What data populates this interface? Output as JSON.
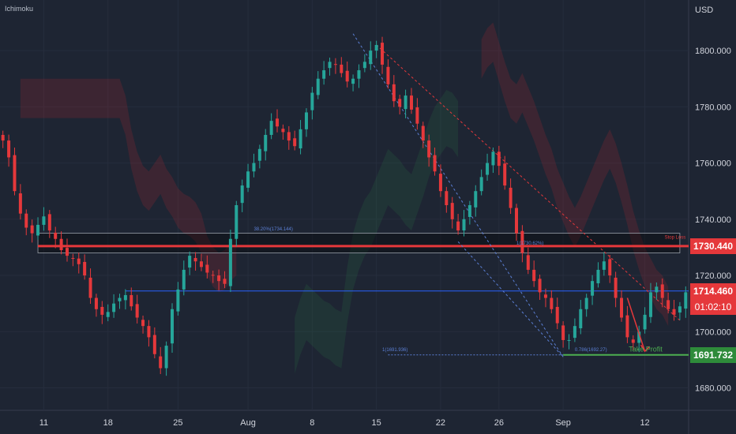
{
  "indicator_label": "Ichimoku",
  "currency": "USD",
  "chart_data": {
    "type": "candlestick",
    "y_ticks": [
      1800,
      1780,
      1760,
      1740,
      1720,
      1700,
      1680
    ],
    "y_tick_labels": [
      "1800.000",
      "1780.000",
      "1760.000",
      "1740.000",
      "1720.000",
      "1700.000",
      "1680.000"
    ],
    "ylim": [
      1672,
      1818
    ],
    "x_tick_labels": [
      "11",
      "18",
      "25",
      "Aug",
      "8",
      "15",
      "22",
      "26",
      "Sep",
      "12"
    ],
    "x_tick_index": [
      7,
      18,
      30,
      42,
      53,
      64,
      75,
      85,
      96,
      110
    ],
    "n_bars": 118,
    "price_tags": [
      {
        "value": 1730.44,
        "label": "1730.440",
        "color": "#e5383b"
      },
      {
        "value": 1714.46,
        "label": "1714.460",
        "color": "#e5383b"
      },
      {
        "value": 1691.732,
        "label": "1691.732",
        "color": "#2e8b3a"
      }
    ],
    "countdown": "01:02:10",
    "levels": {
      "resistance_zone": [
        1728,
        1735
      ],
      "resistance_line": 1730.44,
      "pivot_line": 1714.46,
      "take_profit": 1691.732
    },
    "annotations": [
      {
        "text": "Take Profit",
        "color": "#4caf50"
      },
      {
        "text": "Stop Loss",
        "color": "#e5383b"
      },
      {
        "text": "38.20%(1734.144)",
        "color": "#5b7fd4"
      },
      {
        "text": "1(1691.936)",
        "color": "#5b7fd4"
      },
      {
        "text": "0.786(1692.27)",
        "color": "#5b7fd4"
      },
      {
        "text": "1(1730.62%)",
        "color": "#5b7fd4"
      }
    ],
    "closes": [
      1768,
      1762,
      1750,
      1742,
      1737,
      1735,
      1738,
      1741,
      1736,
      1733,
      1729,
      1727,
      1726,
      1724,
      1720,
      1712,
      1708,
      1706,
      1707,
      1710,
      1712,
      1713,
      1709,
      1705,
      1702,
      1698,
      1692,
      1687,
      1695,
      1708,
      1715,
      1722,
      1727,
      1725,
      1723,
      1721,
      1720,
      1718,
      1717,
      1733,
      1745,
      1752,
      1757,
      1760,
      1765,
      1770,
      1775,
      1773,
      1771,
      1768,
      1766,
      1772,
      1778,
      1785,
      1790,
      1793,
      1796,
      1795,
      1792,
      1789,
      1790,
      1793,
      1796,
      1800,
      1802,
      1795,
      1788,
      1782,
      1780,
      1784,
      1779,
      1774,
      1768,
      1762,
      1757,
      1750,
      1745,
      1740,
      1736,
      1740,
      1745,
      1750,
      1755,
      1760,
      1764,
      1759,
      1752,
      1744,
      1735,
      1728,
      1722,
      1718,
      1714,
      1712,
      1708,
      1703,
      1697,
      1697,
      1702,
      1708,
      1712,
      1718,
      1722,
      1725,
      1720,
      1712,
      1705,
      1698,
      1696,
      1700,
      1706,
      1714,
      1716,
      1712,
      1708,
      1706,
      1709,
      1714
    ]
  }
}
